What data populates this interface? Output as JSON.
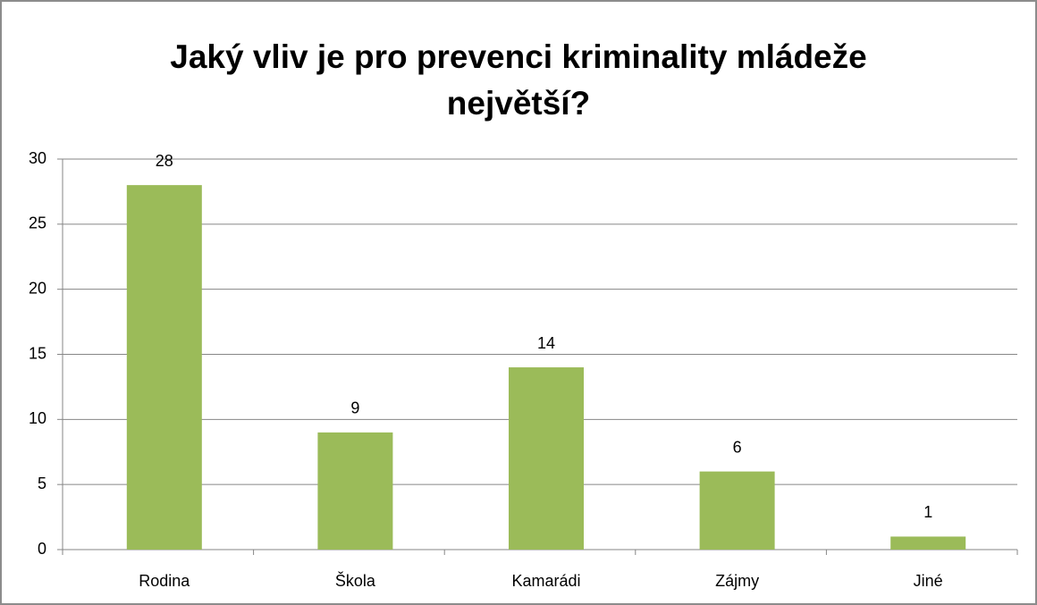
{
  "chart_data": {
    "type": "bar",
    "title": "Jaký vliv je pro prevenci kriminality mládeže největší?",
    "categories": [
      "Rodina",
      "Škola",
      "Kamarádi",
      "Zájmy",
      "Jiné"
    ],
    "values": [
      28,
      9,
      14,
      6,
      1
    ],
    "color": "#9bbb59",
    "ylim": [
      0,
      30
    ],
    "yticks": [
      0,
      5,
      10,
      15,
      20,
      25,
      30
    ],
    "grid": true,
    "data_labels": true
  }
}
